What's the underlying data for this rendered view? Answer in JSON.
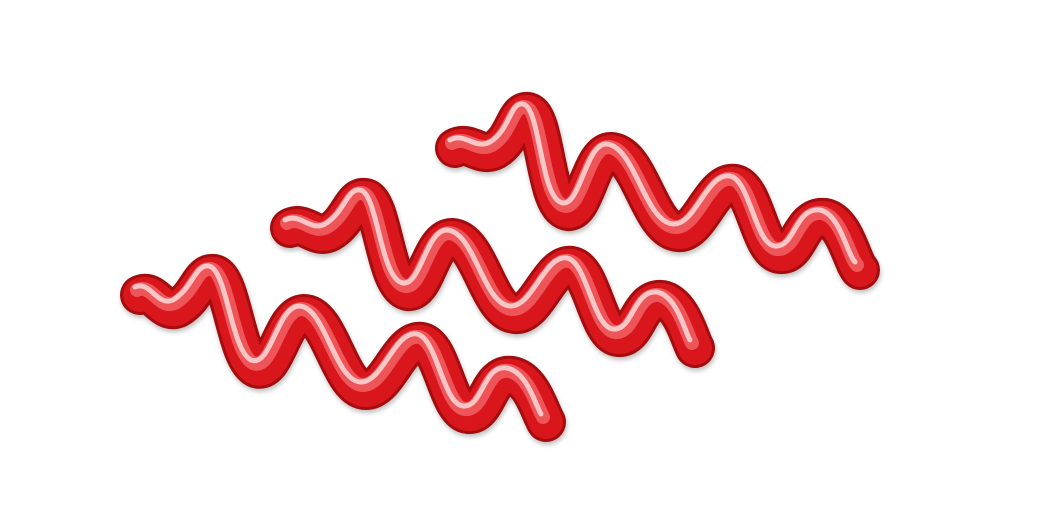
{
  "image": {
    "subject": "ketchup-squiggles",
    "background_color": "#ffffff",
    "colors": {
      "ketchup_base": "#d8141b",
      "ketchup_dark": "#a30810",
      "ketchup_highlight": "#ff8a8a",
      "ketchup_shine": "#ffe2e2"
    },
    "squiggle_count": 3
  }
}
